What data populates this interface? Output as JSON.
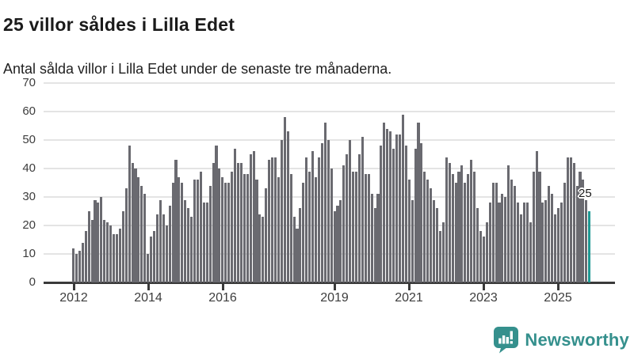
{
  "header": {
    "title": "25 villor såldes i Lilla Edet",
    "subtitle": "Antal sålda villor i Lilla Edet under de senaste tre månaderna."
  },
  "chart_data": {
    "type": "bar",
    "title": "25 villor såldes i Lilla Edet",
    "subtitle": "Antal sålda villor i Lilla Edet under de senaste tre månaderna.",
    "series_name": "Antal sålda villor (rullande tre månader)",
    "period_start": "2012-01",
    "period_end": "2025-11",
    "frequency": "monthly",
    "values": [
      12,
      10,
      11,
      14,
      18,
      25,
      22,
      29,
      28,
      30,
      22,
      21,
      20,
      17,
      17,
      19,
      25,
      33,
      48,
      42,
      40,
      37,
      34,
      31,
      10,
      16,
      18,
      24,
      29,
      24,
      20,
      27,
      35,
      43,
      37,
      35,
      29,
      26,
      23,
      36,
      36,
      39,
      28,
      28,
      34,
      42,
      48,
      40,
      37,
      35,
      35,
      39,
      47,
      42,
      42,
      38,
      38,
      45,
      46,
      36,
      24,
      23,
      33,
      43,
      44,
      44,
      37,
      50,
      58,
      53,
      38,
      23,
      19,
      26,
      35,
      44,
      39,
      46,
      37,
      44,
      49,
      56,
      50,
      40,
      25,
      27,
      29,
      41,
      45,
      50,
      39,
      39,
      45,
      51,
      38,
      38,
      31,
      26,
      31,
      48,
      56,
      54,
      53,
      47,
      52,
      52,
      59,
      48,
      36,
      29,
      47,
      56,
      49,
      39,
      36,
      33,
      29,
      26,
      18,
      21,
      44,
      42,
      38,
      35,
      39,
      41,
      35,
      38,
      43,
      39,
      26,
      18,
      16,
      21,
      28,
      35,
      35,
      28,
      31,
      30,
      41,
      36,
      34,
      28,
      24,
      28,
      28,
      21,
      39,
      46,
      39,
      28,
      29,
      34,
      31,
      24,
      26,
      28,
      35,
      44,
      44,
      42,
      34,
      39,
      36,
      29,
      25
    ],
    "highlight_last": true,
    "last_value": 25,
    "yaxis": {
      "min": 0,
      "max": 70,
      "ticks": [
        0,
        10,
        20,
        30,
        40,
        50,
        60,
        70
      ],
      "grid": true
    },
    "xaxis": {
      "tick_years": [
        2012,
        2014,
        2016,
        2019,
        2021,
        2023,
        2025
      ]
    },
    "legend": "none",
    "colors": {
      "bar": "#6a6a70",
      "highlight": "#209a94",
      "grid": "#e4e4e4",
      "axis": "#3a3a3a"
    }
  },
  "annotation": {
    "label": "25"
  },
  "footer": {
    "brand": "Newsworthy",
    "brand_color": "#35908d"
  }
}
